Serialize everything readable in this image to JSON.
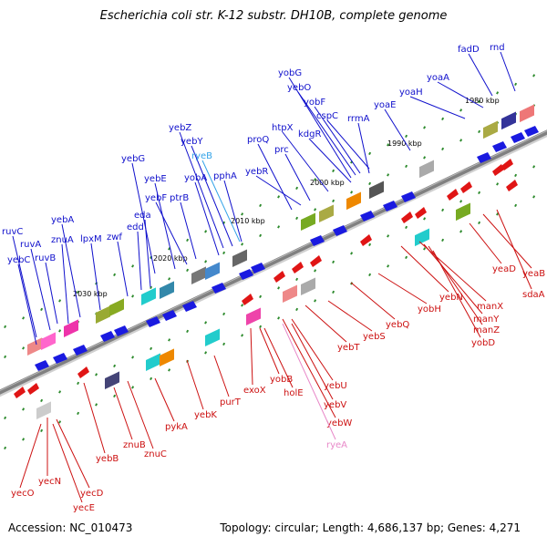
{
  "title": "Escherichia coli str. K-12 substr. DH10B, complete genome",
  "footer": {
    "accession": "Accession: NC_010473",
    "summary": "Topology: circular; Length: 4,686,137 bp; Genes: 4,271"
  },
  "colors": {
    "forward_label": "#1010cc",
    "reverse_label": "#cc1010",
    "forward_rna_label": "#33a3e8",
    "reverse_rna_label": "#e888c8",
    "backbone": "#808080",
    "tick": "#2e8b2e"
  },
  "scale_labels": [
    "2030 kbp",
    "2020 kbp",
    "2010 kbp",
    "2000 kbp",
    "1990 kbp",
    "1980 kbp"
  ],
  "forward_labels": [
    "ruvC",
    "yebC",
    "ruvA",
    "ruvB",
    "znuA",
    "yebA",
    "lpxM",
    "zwf",
    "edd",
    "eda",
    "yebG",
    "yebE",
    "yebF",
    "ptrB",
    "yebZ",
    "yebY",
    "ryeB",
    "yobA",
    "pphA",
    "proQ",
    "yebR",
    "prc",
    "htpX",
    "yobG",
    "yebO",
    "yobF",
    "kdgR",
    "cspC",
    "rrmA",
    "yoaE",
    "yoaH",
    "yoaA",
    "fadD",
    "rnd"
  ],
  "reverse_labels": [
    "yecO",
    "yecN",
    "yecE",
    "yecD",
    "yebB",
    "znuB",
    "znuC",
    "pykA",
    "yebK",
    "purT",
    "exoX",
    "yobB",
    "holE",
    "yebU",
    "yebV",
    "yebW",
    "ryeA",
    "yebT",
    "yebS",
    "yebQ",
    "yobH",
    "yebN",
    "manX",
    "manY",
    "manZ",
    "yobD",
    "yeaD",
    "yeaB",
    "sdaA"
  ]
}
